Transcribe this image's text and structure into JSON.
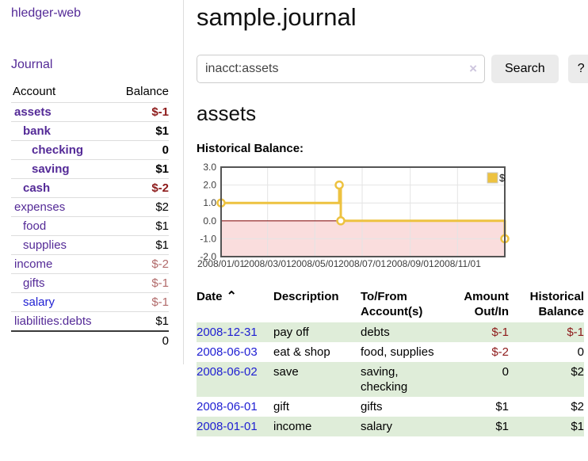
{
  "colors": {
    "link_purple": "#542A97",
    "link_blue": "#1E1ED2",
    "negative_strong": "#8D1A1A",
    "negative_soft": "#B16A6A",
    "row_green": "#DFEDD9",
    "chart_series": "#EDC240",
    "chart_negative_fill": "#FADDDD",
    "chart_zero_line": "#8B1A1A"
  },
  "icons": {
    "sort_ascending": "⌃",
    "clear": "×"
  },
  "sidebar": {
    "app_title": "hledger-web",
    "nav": {
      "journal_label": "Journal"
    },
    "accounts_table": {
      "headers": {
        "account": "Account",
        "balance": "Balance"
      },
      "rows": [
        {
          "name": "assets",
          "depth": 0,
          "bold": true,
          "balance": "$-1",
          "balance_style": "neg-strong"
        },
        {
          "name": "bank",
          "depth": 1,
          "bold": true,
          "balance": "$1",
          "balance_style": "normal"
        },
        {
          "name": "checking",
          "depth": 2,
          "bold": true,
          "balance": "0",
          "balance_style": "normal"
        },
        {
          "name": "saving",
          "depth": 2,
          "bold": true,
          "balance": "$1",
          "balance_style": "normal"
        },
        {
          "name": "cash",
          "depth": 1,
          "bold": true,
          "balance": "$-2",
          "balance_style": "neg-strong"
        },
        {
          "name": "expenses",
          "depth": 0,
          "bold": false,
          "balance": "$2",
          "balance_style": "normal"
        },
        {
          "name": "food",
          "depth": 1,
          "bold": false,
          "balance": "$1",
          "balance_style": "normal"
        },
        {
          "name": "supplies",
          "depth": 1,
          "bold": false,
          "balance": "$1",
          "balance_style": "normal"
        },
        {
          "name": "income",
          "depth": 0,
          "bold": false,
          "balance": "$-2",
          "balance_style": "neg-soft"
        },
        {
          "name": "gifts",
          "depth": 1,
          "bold": false,
          "balance": "$-1",
          "balance_style": "neg-soft"
        },
        {
          "name": "salary",
          "depth": 1,
          "bold": false,
          "link_color": "blue",
          "balance": "$-1",
          "balance_style": "neg-soft"
        },
        {
          "name": "liabilities:debts",
          "depth": 0,
          "bold": false,
          "balance": "$1",
          "balance_style": "normal"
        }
      ],
      "total": "0"
    }
  },
  "main": {
    "title": "sample.journal",
    "search": {
      "value": "inacct:assets",
      "button_label": "Search",
      "help_label": "?"
    },
    "account_heading": "assets",
    "chart_heading": "Historical Balance:",
    "transactions": {
      "headers": {
        "date": "Date",
        "description": "Description",
        "accounts": "To/From\nAccount(s)",
        "amount": "Amount\nOut/In",
        "balance": "Historical\nBalance"
      },
      "rows": [
        {
          "date": "2008-12-31",
          "description": "pay off",
          "accounts": "debts",
          "amount": "$-1",
          "balance": "$-1"
        },
        {
          "date": "2008-06-03",
          "description": "eat & shop",
          "accounts": "food, supplies",
          "amount": "$-2",
          "balance": "0"
        },
        {
          "date": "2008-06-02",
          "description": "save",
          "accounts": "saving,\nchecking",
          "amount": "0",
          "balance": "$2"
        },
        {
          "date": "2008-06-01",
          "description": "gift",
          "accounts": "gifts",
          "amount": "$1",
          "balance": "$2"
        },
        {
          "date": "2008-01-01",
          "description": "income",
          "accounts": "salary",
          "amount": "$1",
          "balance": "$1"
        }
      ]
    }
  },
  "chart_data": {
    "type": "line",
    "title": "Historical Balance:",
    "legend_position": "top-right",
    "grid": true,
    "ylim": [
      -2.0,
      3.0
    ],
    "y_ticks": [
      3.0,
      2.0,
      1.0,
      0.0,
      -1.0,
      -2.0
    ],
    "x_ticks": [
      {
        "pos": 0.0,
        "label": "2008/01/01"
      },
      {
        "pos": 0.1639,
        "label": "2008/03/01"
      },
      {
        "pos": 0.3306,
        "label": "2008/05/01"
      },
      {
        "pos": 0.4973,
        "label": "2008/07/01"
      },
      {
        "pos": 0.6667,
        "label": "2008/09/01"
      },
      {
        "pos": 0.8333,
        "label": "2008/11/01"
      }
    ],
    "series": [
      {
        "name": "$",
        "steps": true,
        "markers": true,
        "points": [
          {
            "x": 0.0,
            "y": 1
          },
          {
            "x": 0.4164,
            "y": 2
          },
          {
            "x": 0.4219,
            "y": 0
          },
          {
            "x": 1.0,
            "y": -1
          }
        ]
      }
    ],
    "points_by_date": [
      [
        "2008-01-01",
        1
      ],
      [
        "2008-06-01",
        2
      ],
      [
        "2008-06-02",
        2
      ],
      [
        "2008-06-03",
        0
      ],
      [
        "2008-12-31",
        -1
      ]
    ]
  }
}
